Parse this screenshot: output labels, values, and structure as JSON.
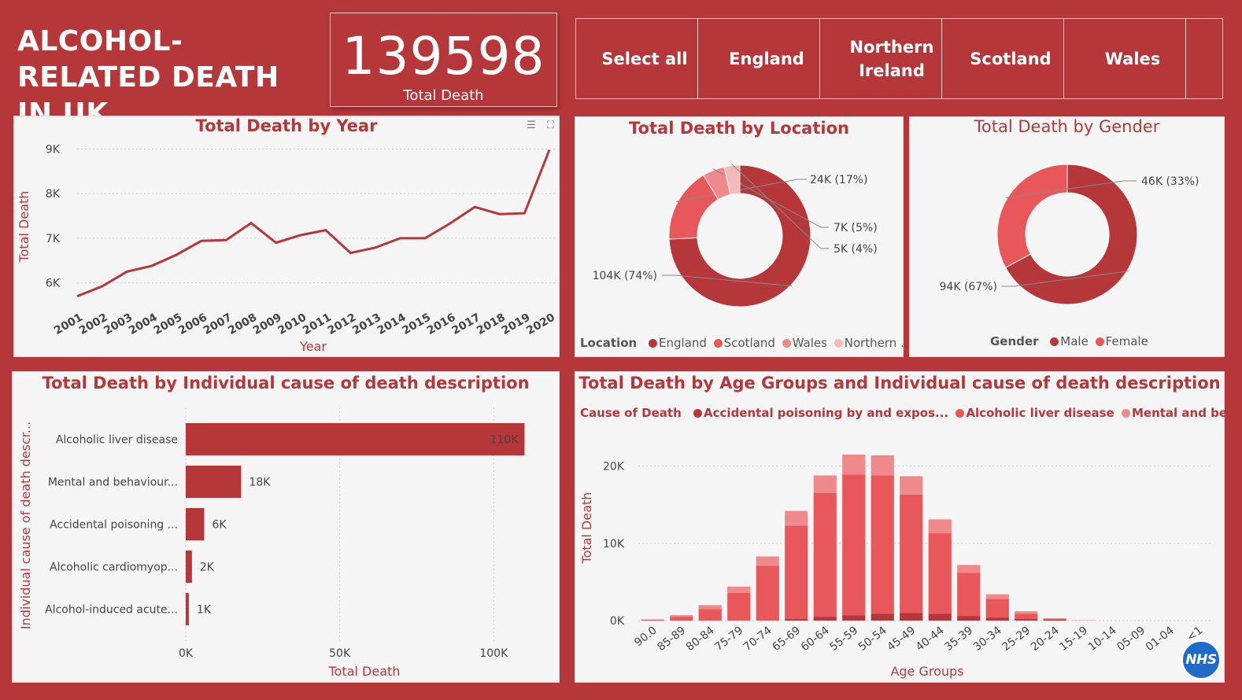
{
  "header": {
    "title": "ALCOHOL-RELATED DEATH IN UK",
    "kpi_value": "139598",
    "kpi_label": "Total Death"
  },
  "slicer": {
    "options": [
      "Select all",
      "England",
      "Northern Ireland",
      "Scotland",
      "Wales"
    ]
  },
  "icons": [
    "filter-icon",
    "focus-mode-icon",
    "nhs-logo-icon"
  ],
  "colors": {
    "background": "#b5373a",
    "panel": "#f5f5f5",
    "dark_red": "#b5373a",
    "mid_red": "#e8575a",
    "light_red": "#f0898b",
    "pale_red": "#f6b8b9"
  },
  "chart_data": [
    {
      "id": "by_year",
      "type": "line",
      "title": "Total Death by Year",
      "xlabel": "Year",
      "ylabel": "Total Death",
      "x": [
        "2001",
        "2002",
        "2003",
        "2004",
        "2005",
        "2006",
        "2007",
        "2008",
        "2009",
        "2010",
        "2011",
        "2012",
        "2013",
        "2014",
        "2015",
        "2016",
        "2017",
        "2018",
        "2019",
        "2020"
      ],
      "values": [
        5700,
        5920,
        6250,
        6380,
        6630,
        6940,
        6960,
        7340,
        6900,
        7070,
        7180,
        6670,
        6790,
        7000,
        7000,
        7330,
        7700,
        7540,
        7560,
        8980
      ],
      "ylim": [
        5500,
        9200
      ],
      "yticks": [
        6000,
        7000,
        8000,
        9000
      ],
      "ytick_labels": [
        "6K",
        "7K",
        "8K",
        "9K"
      ],
      "grid": true
    },
    {
      "id": "by_location",
      "type": "pie",
      "title": "Total Death by Location",
      "legend_title": "Location",
      "legend_labels": [
        "England",
        "Scotland",
        "Wales",
        "Northern ..."
      ],
      "categories": [
        "England",
        "Scotland",
        "Wales",
        "Northern Ireland"
      ],
      "values": [
        104,
        24,
        7,
        5
      ],
      "data_labels": [
        "104K (74%)",
        "24K (17%)",
        "7K (5%)",
        "5K (4%)"
      ],
      "legend": "bottom-left"
    },
    {
      "id": "by_gender",
      "type": "pie",
      "title": "Total Death by Gender",
      "legend_title": "Gender",
      "categories": [
        "Male",
        "Female"
      ],
      "values": [
        94,
        46
      ],
      "data_labels": [
        "94K (67%)",
        "46K (33%)"
      ],
      "legend": "bottom"
    },
    {
      "id": "by_cause",
      "type": "bar",
      "orientation": "horizontal",
      "title": "Total Death by Individual cause of death description",
      "xlabel": "Total Death",
      "ylabel": "Individual cause of death descr...",
      "categories": [
        "Alcoholic liver disease",
        "Mental and behaviour...",
        "Accidental poisoning ...",
        "Alcoholic cardiomyop...",
        "Alcohol-induced acute..."
      ],
      "values": [
        110000,
        18000,
        6000,
        2000,
        1000
      ],
      "data_labels": [
        "110K",
        "18K",
        "6K",
        "2K",
        "1K"
      ],
      "xlim": [
        0,
        115000
      ],
      "xticks": [
        0,
        50000,
        100000
      ],
      "xtick_labels": [
        "0K",
        "50K",
        "100K"
      ],
      "grid": true
    },
    {
      "id": "by_age",
      "type": "bar",
      "stacked": true,
      "title": "Total Death by Age Groups and Individual cause of death description",
      "xlabel": "Age Groups",
      "ylabel": "Total Death",
      "legend_title": "Cause of Death",
      "legend_labels": [
        "Accidental poisoning by and expos...",
        "Alcoholic liver disease",
        "Mental and behaviou..."
      ],
      "categories": [
        "90.0",
        "85-89",
        "80-84",
        "75-79",
        "70-74",
        "65-69",
        "60-64",
        "55-59",
        "50-54",
        "45-49",
        "40-44",
        "35-39",
        "30-34",
        "25-29",
        "20-24",
        "15-19",
        "10-14",
        "05-09",
        "01-04",
        "<1"
      ],
      "series": [
        {
          "name": "Accidental poisoning by and expos...",
          "values": [
            0,
            0,
            0,
            0,
            0,
            200,
            500,
            700,
            900,
            1000,
            900,
            600,
            400,
            200,
            100,
            0,
            0,
            0,
            0,
            0
          ]
        },
        {
          "name": "Alcoholic liver disease",
          "values": [
            100,
            500,
            1500,
            3600,
            7100,
            12100,
            16000,
            18200,
            17900,
            15300,
            10400,
            5600,
            2400,
            700,
            100,
            0,
            0,
            0,
            0,
            0
          ]
        },
        {
          "name": "Mental and behaviou...",
          "values": [
            50,
            200,
            500,
            800,
            1200,
            1900,
            2300,
            2600,
            2600,
            2400,
            1800,
            1000,
            600,
            300,
            100,
            50,
            0,
            0,
            0,
            0
          ]
        }
      ],
      "ylim": [
        0,
        22000
      ],
      "yticks": [
        0,
        10000,
        20000
      ],
      "ytick_labels": [
        "0K",
        "10K",
        "20K"
      ],
      "legend": "top",
      "grid": true
    }
  ]
}
